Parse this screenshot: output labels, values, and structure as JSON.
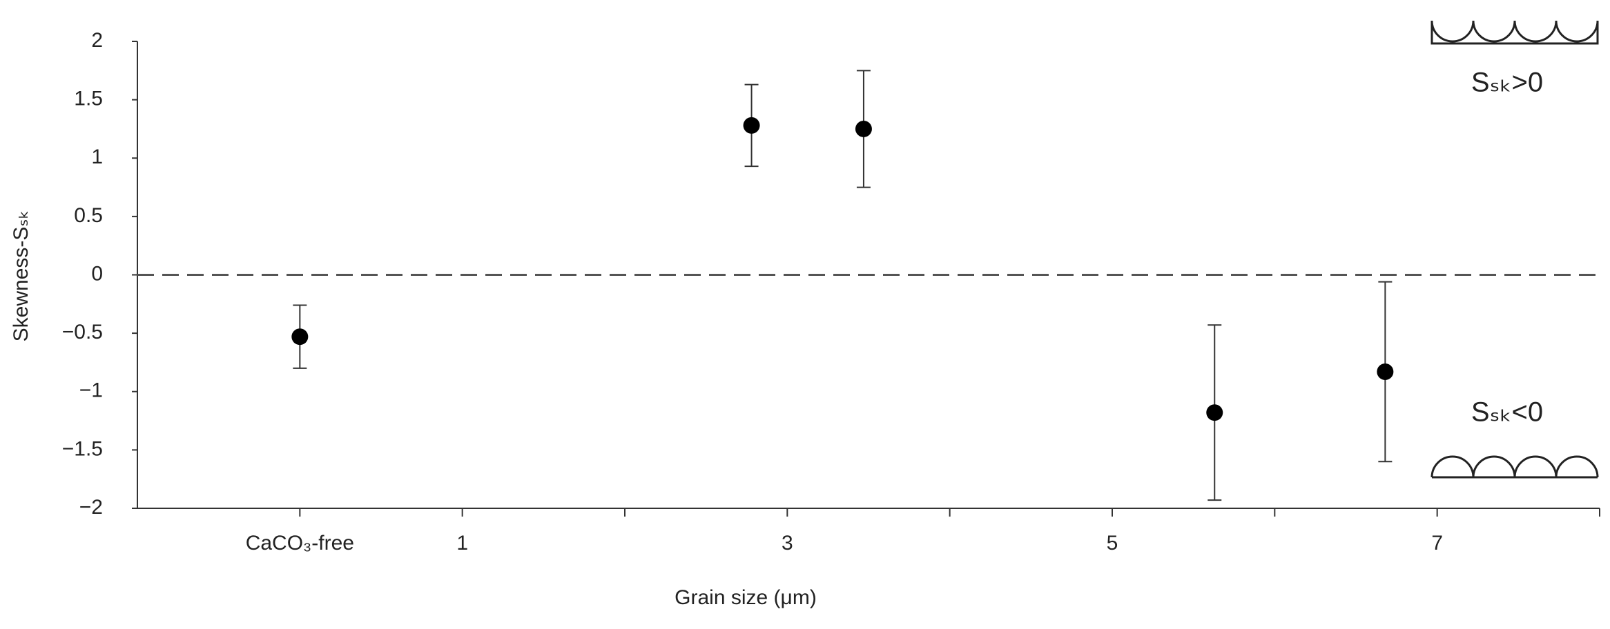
{
  "chart_data": {
    "type": "scatter",
    "x_label": "Grain size (μm)",
    "y_label": "Skewness-Sₛₖ",
    "annotations": [
      "Sₛₖ>0",
      "Sₛₖ<0"
    ],
    "xlim": [
      -1,
      8
    ],
    "xticks": [
      {
        "value": 0,
        "label": "CaCO₃-free"
      },
      1,
      3,
      5,
      7
    ],
    "x_minor_ticks": [
      2,
      4,
      6,
      8
    ],
    "ylim": [
      -2,
      2
    ],
    "yticks": [
      {
        "value": -2,
        "label": "−2"
      },
      {
        "value": -1.5,
        "label": "−1.5"
      },
      {
        "value": -1,
        "label": "−1"
      },
      {
        "value": -0.5,
        "label": "−0.5"
      },
      0,
      0.5,
      1,
      1.5,
      2
    ],
    "reference_line": 0,
    "series": [
      {
        "color": "#000000",
        "x": [
          0,
          2.78,
          3.47,
          5.63,
          6.68
        ],
        "values": [
          -0.53,
          1.28,
          1.25,
          -1.18,
          -0.83
        ],
        "errors": [
          0.27,
          0.35,
          0.5,
          0.75,
          0.77
        ]
      }
    ]
  }
}
